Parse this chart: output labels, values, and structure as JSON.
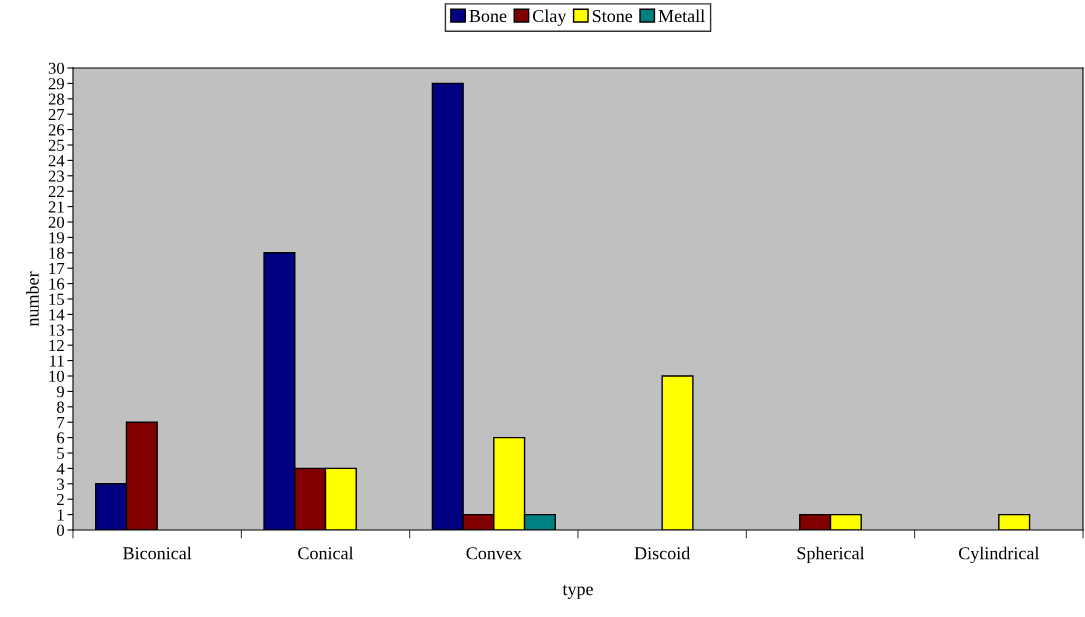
{
  "chart_data": {
    "type": "bar",
    "xlabel": "type",
    "ylabel": "number",
    "categories": [
      "Biconical",
      "Conical",
      "Convex",
      "Discoid",
      "Spherical",
      "Cylindrical"
    ],
    "series": [
      {
        "name": "Bone",
        "color": "#000080",
        "values": [
          3,
          18,
          29,
          null,
          null,
          null
        ]
      },
      {
        "name": "Clay",
        "color": "#800000",
        "values": [
          7,
          4,
          1,
          null,
          1,
          null
        ]
      },
      {
        "name": "Stone",
        "color": "#ffff00",
        "values": [
          null,
          4,
          6,
          10,
          1,
          1
        ]
      },
      {
        "name": "Metall",
        "color": "#008080",
        "values": [
          null,
          null,
          1,
          null,
          null,
          null
        ]
      }
    ],
    "ylim": [
      0,
      30
    ],
    "yticks": [
      0,
      1,
      2,
      3,
      4,
      5,
      6,
      7,
      8,
      9,
      10,
      11,
      12,
      13,
      14,
      15,
      16,
      17,
      18,
      19,
      20,
      21,
      22,
      23,
      24,
      25,
      26,
      27,
      28,
      29,
      30
    ],
    "grid": false,
    "legend": "top"
  }
}
